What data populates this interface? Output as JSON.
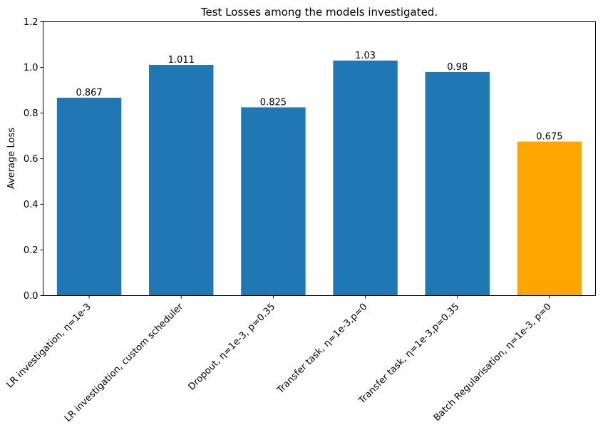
{
  "chart_data": {
    "type": "bar",
    "title": "Test Losses among the models investigated.",
    "xlabel": "",
    "ylabel": "Average Loss",
    "ylim": [
      0,
      1.2
    ],
    "yticks": [
      "0.0",
      "0.2",
      "0.4",
      "0.6",
      "0.8",
      "1.0",
      "1.2"
    ],
    "ytick_values": [
      0,
      0.2,
      0.4,
      0.6,
      0.8,
      1.0,
      1.2
    ],
    "grid": false,
    "categories": [
      "LR investigation, η=1e-3",
      "LR investigation, custom scheduler",
      "Dropout, η=1e-3, p=0.35",
      "Transfer task, η=1e-3,p=0",
      "Transfer task, η=1e-3,p=0.35",
      "Batch Regularisation, η=1e-3, p=0"
    ],
    "values": [
      0.867,
      1.011,
      0.825,
      1.03,
      0.98,
      0.675
    ],
    "value_labels": [
      "0.867",
      "1.011",
      "0.825",
      "1.03",
      "0.98",
      "0.675"
    ],
    "colors": [
      "#1f77b4",
      "#1f77b4",
      "#1f77b4",
      "#1f77b4",
      "#1f77b4",
      "#ffa500"
    ]
  }
}
